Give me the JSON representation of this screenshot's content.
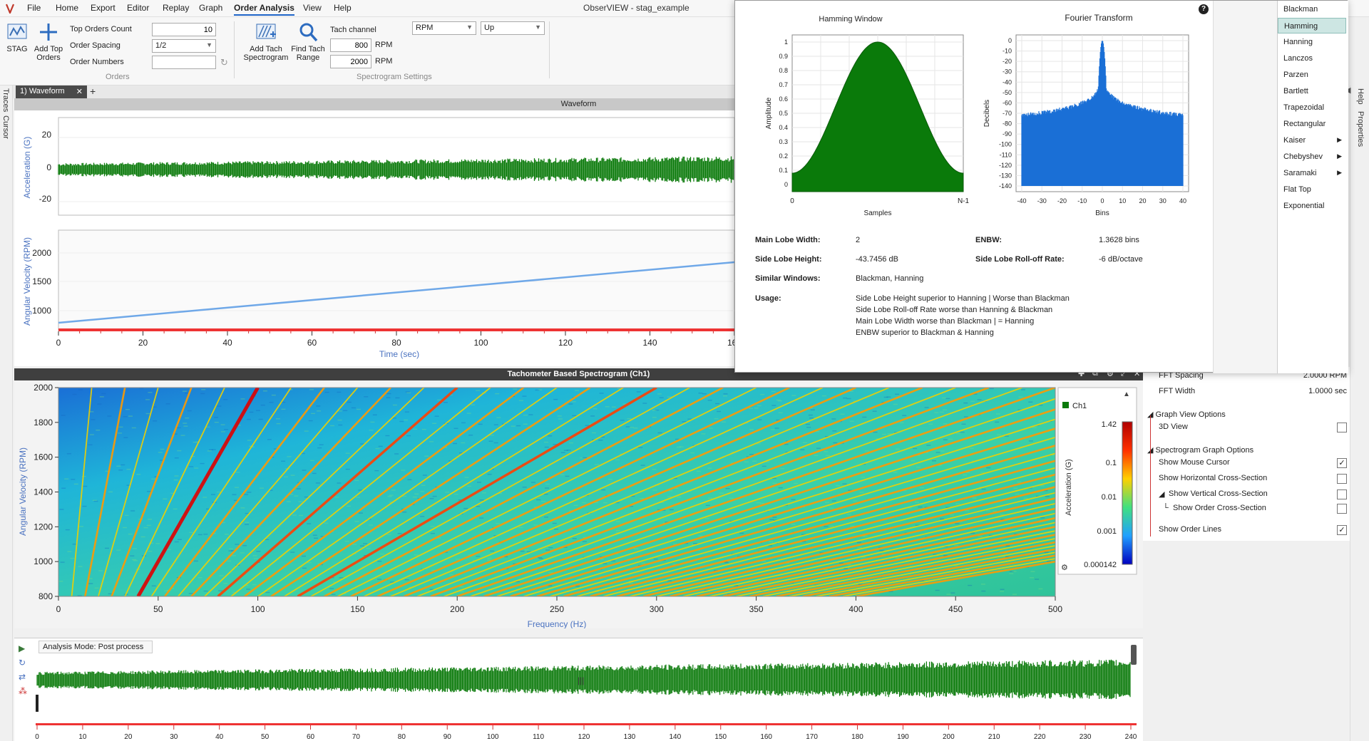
{
  "app": {
    "title": "ObserVIEW - stag_example"
  },
  "menu": [
    "File",
    "Home",
    "Export",
    "Editor",
    "Replay",
    "Graph",
    "Order Analysis",
    "View",
    "Help"
  ],
  "menu_active": "Order Analysis",
  "ribbon": {
    "stag_label": "STAG",
    "add_top_orders_label": "Add Top Orders",
    "top_orders_count_label": "Top Orders Count",
    "top_orders_count_value": "10",
    "order_spacing_label": "Order Spacing",
    "order_spacing_value": "1/2",
    "order_numbers_label": "Order Numbers",
    "order_numbers_value": "",
    "orders_group": "Orders",
    "add_tach_spectrogram_label": "Add Tach Spectrogram",
    "find_tach_range_label": "Find Tach Range",
    "tach_channel_label": "Tach channel",
    "tach_channel_value": "RPM",
    "direction_value": "Up",
    "rpm_min_value": "800",
    "rpm_max_value": "2000",
    "rpm_unit": "RPM",
    "spectrogram_group": "Spectrogram Settings"
  },
  "side": {
    "left_tabs": [
      "Traces",
      "Cursor"
    ],
    "right_tabs": [
      "Help",
      "Properties"
    ]
  },
  "tabs": {
    "active": "1) Waveform",
    "add": "+"
  },
  "waveform": {
    "title": "Waveform",
    "accel_ylabel": "Acceleration (G)",
    "accel_ticks": [
      "20",
      "0",
      "-20"
    ],
    "rpm_ylabel": "Angular Velocity (RPM)",
    "rpm_ticks": [
      "2000",
      "1500",
      "1000"
    ],
    "time_ticks": [
      "0",
      "20",
      "40",
      "60",
      "80",
      "100",
      "120",
      "140",
      "160"
    ],
    "xlabel": "Time (sec)",
    "accent": "#0a7a0a",
    "rpm_line_color": "#6fa8e8"
  },
  "spectrogram": {
    "title": "Tachometer Based Spectrogram (Ch1)",
    "ylabel": "Angular Velocity (RPM)",
    "yticks": [
      "2000",
      "1800",
      "1600",
      "1400",
      "1200",
      "1000",
      "800"
    ],
    "xlabel": "Frequency (Hz)",
    "xticks": [
      "0",
      "50",
      "100",
      "150",
      "200",
      "250",
      "300",
      "350",
      "400",
      "450",
      "500"
    ],
    "legend_channel": "Ch1",
    "colorbar_label": "Acceleration (G)",
    "colorbar_ticks": [
      "1.42",
      "0.1",
      "0.01",
      "0.001",
      "0.000142"
    ]
  },
  "overview": {
    "mode_label": "Analysis Mode: Post process",
    "ticks": [
      "0",
      "10",
      "20",
      "30",
      "40",
      "50",
      "60",
      "70",
      "80",
      "90",
      "100",
      "110",
      "120",
      "130",
      "140",
      "150",
      "160",
      "170",
      "180",
      "190",
      "200",
      "210",
      "220",
      "230",
      "240"
    ]
  },
  "popup": {
    "window_title": "Hamming Window",
    "window_xlabel": "Samples",
    "window_ylabel": "Amplitude",
    "window_yticks": [
      "1",
      "0.9",
      "0.8",
      "0.7",
      "0.6",
      "0.5",
      "0.4",
      "0.3",
      "0.2",
      "0.1",
      "0"
    ],
    "window_x_start": "0",
    "window_x_end": "N-1",
    "ft_title": "Fourier Transform",
    "ft_xlabel": "Bins",
    "ft_ylabel": "Decibels",
    "ft_yticks": [
      "0",
      "-10",
      "-20",
      "-30",
      "-40",
      "-50",
      "-60",
      "-70",
      "-80",
      "-90",
      "-100",
      "-110",
      "-120",
      "-130",
      "-140"
    ],
    "ft_xticks": [
      "-40",
      "-30",
      "-20",
      "-10",
      "0",
      "10",
      "20",
      "30",
      "40"
    ],
    "help_icon": "?",
    "main_lobe_width_label": "Main Lobe Width:",
    "main_lobe_width_value": "2",
    "enbw_label": "ENBW:",
    "enbw_value": "1.3628 bins",
    "side_lobe_height_label": "Side Lobe Height:",
    "side_lobe_height_value": "-43.7456 dB",
    "rolloff_label": "Side Lobe Roll-off Rate:",
    "rolloff_value": "-6 dB/octave",
    "similar_label": "Similar Windows:",
    "similar_value": "Blackman, Hanning",
    "usage_label": "Usage:",
    "usage_lines": [
      "Side Lobe Height superior to Hanning | Worse than Blackman",
      "Side Lobe Roll-off Rate worse than Hanning & Blackman",
      "Main Lobe Width worse than Blackman | = Hanning",
      "ENBW superior to Blackman & Hanning"
    ],
    "window_list": [
      "Blackman",
      "Hamming",
      "Hanning",
      "Lanczos",
      "Parzen",
      "Bartlett",
      "Trapezoidal",
      "Rectangular",
      "Kaiser",
      "Chebyshev",
      "Saramaki",
      "Flat Top",
      "Exponential"
    ],
    "window_selected": "Hamming",
    "fill_color": "#0a7a0a",
    "ft_color": "#1a6fd6"
  },
  "properties": {
    "fft_spacing_label": "FFT Spacing",
    "fft_spacing_value": "2.0000 RPM",
    "fft_width_label": "FFT Width",
    "fft_width_value": "1.0000 sec",
    "graph_view_section": "Graph View Options",
    "view_3d_label": "3D View",
    "spectrogram_section": "Spectrogram Graph Options",
    "mouse_cursor_label": "Show Mouse Cursor",
    "horizontal_cs_label": "Show Horizontal Cross-Section",
    "vertical_cs_label": "Show Vertical Cross-Section",
    "order_cs_label": "Show Order Cross-Section",
    "order_lines_label": "Show Order Lines",
    "check_mark": "✓"
  }
}
